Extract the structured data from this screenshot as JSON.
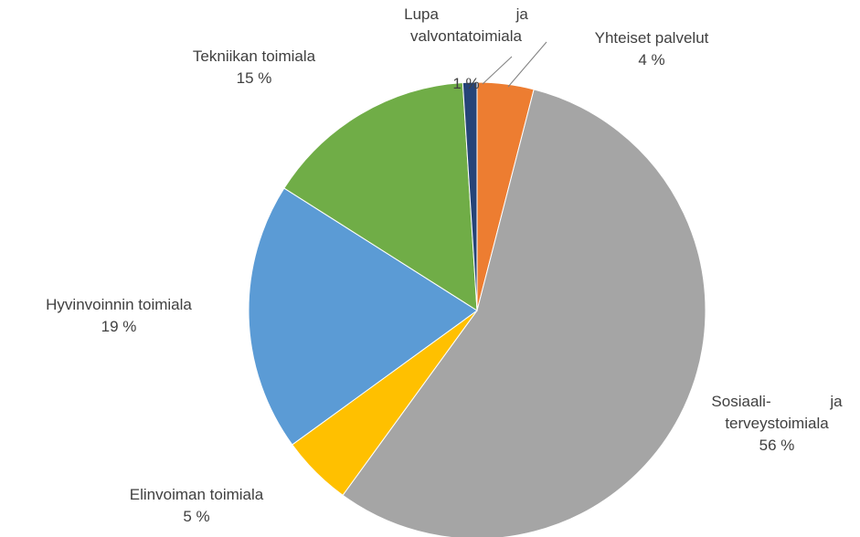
{
  "chart_data": {
    "type": "pie",
    "categories": [
      "Yhteiset palvelut",
      "Sosiaali- ja terveystoimiala",
      "Elinvoiman toimiala",
      "Hyvinvoinnin toimiala",
      "Tekniikan toimiala",
      "Lupa ja valvontatoimiala"
    ],
    "values": [
      4,
      56,
      5,
      19,
      15,
      1
    ],
    "value_labels": [
      "4 %",
      "56 %",
      "5 %",
      "19 %",
      "15 %",
      "1 %"
    ],
    "colors": [
      "#ed7d31",
      "#a5a5a5",
      "#ffc000",
      "#5b9bd5",
      "#70ad47",
      "#264478"
    ]
  }
}
